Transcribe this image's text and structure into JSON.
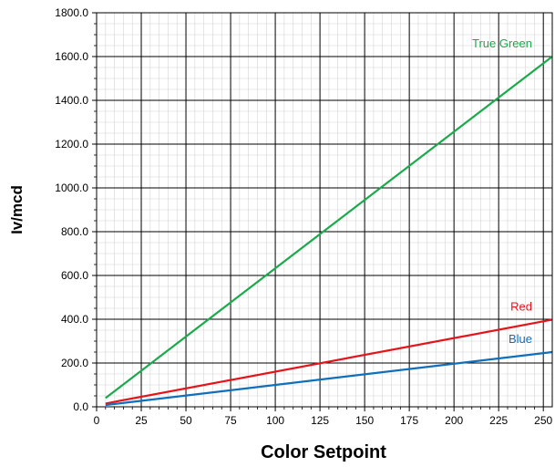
{
  "chart_data": {
    "type": "line",
    "xlabel": "Color Setpoint",
    "ylabel": "Iv/mcd",
    "xlim": [
      0,
      255
    ],
    "ylim": [
      0,
      1800
    ],
    "x_ticks": [
      "0",
      "25",
      "50",
      "75",
      "100",
      "125",
      "150",
      "175",
      "200",
      "225",
      "250"
    ],
    "y_ticks": [
      "0.0",
      "200.0",
      "400.0",
      "600.0",
      "800.0",
      "1000.0",
      "1200.0",
      "1400.0",
      "1600.0",
      "1800.0"
    ],
    "grid": true,
    "series": [
      {
        "name": "True Green",
        "color": "#1aaa4b",
        "x": [
          5,
          255
        ],
        "y": [
          40,
          1600
        ]
      },
      {
        "name": "Red",
        "color": "#e5141b",
        "x": [
          5,
          255
        ],
        "y": [
          15,
          398
        ]
      },
      {
        "name": "Blue",
        "color": "#0f6fbc",
        "x": [
          5,
          255
        ],
        "y": [
          8,
          250
        ]
      }
    ]
  }
}
